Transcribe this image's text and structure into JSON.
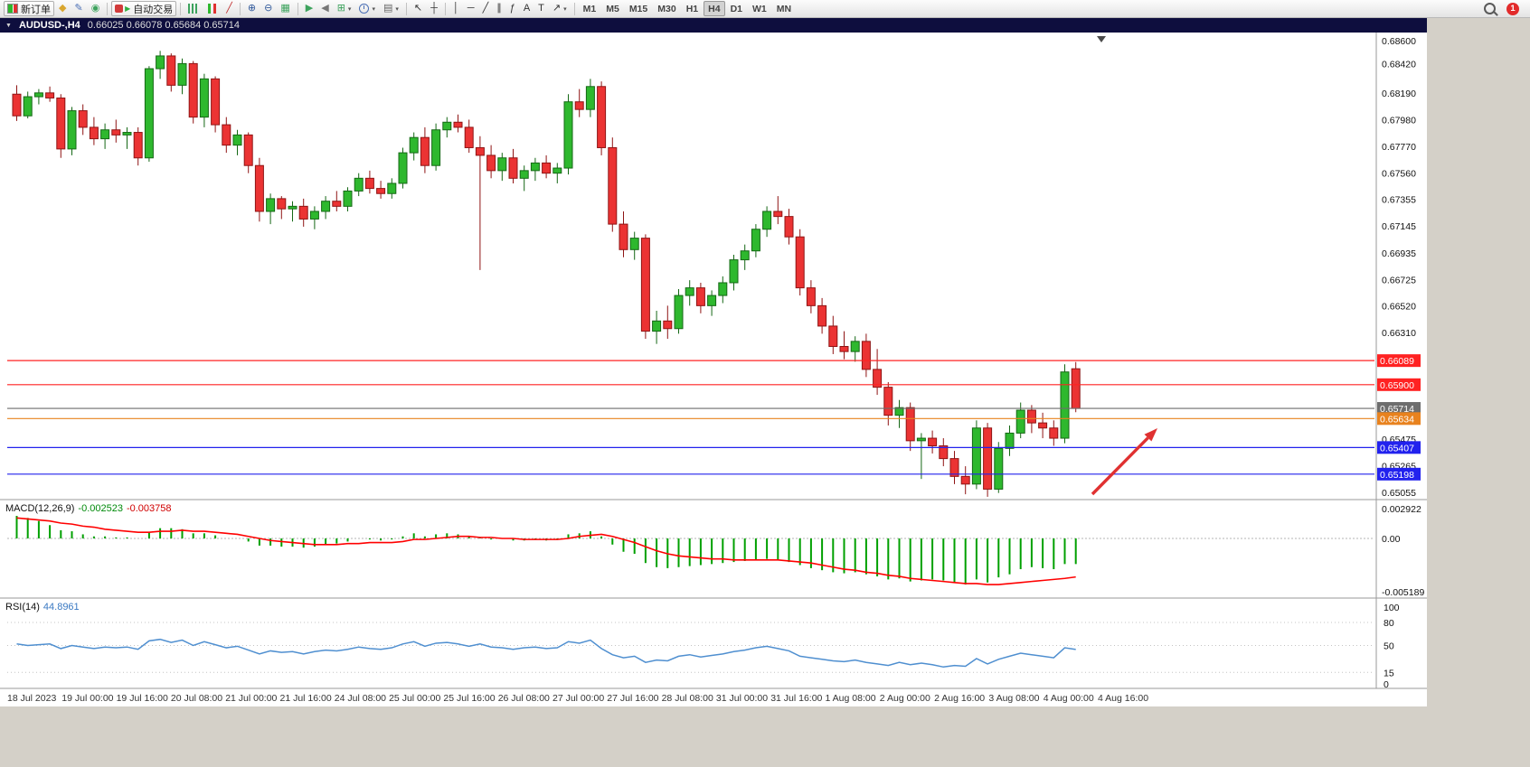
{
  "toolbar": {
    "items": [
      {
        "name": "new-order-button",
        "cls": "ico-neworder",
        "label": "新订单"
      },
      {
        "name": "market-watch-button",
        "glyph": "◆",
        "color": "#d9a62e"
      },
      {
        "name": "metaeditor-button",
        "glyph": "✎",
        "color": "#4a6fb5"
      },
      {
        "name": "refresh-button",
        "glyph": "◉",
        "color": "#3da35d"
      },
      {
        "sep": true
      },
      {
        "name": "auto-trading-button",
        "cls": "ico-autotrade",
        "label": "自动交易"
      },
      {
        "sep": true
      },
      {
        "name": "bar-chart-button",
        "cls": "ico-bars"
      },
      {
        "name": "candlestick-chart-button",
        "cls": "ico-candles"
      },
      {
        "name": "line-chart-button",
        "glyph": "╱",
        "color": "#c03030"
      },
      {
        "sep": true
      },
      {
        "name": "zoom-in-button",
        "glyph": "⊕",
        "color": "#31599b"
      },
      {
        "name": "zoom-out-button",
        "glyph": "⊖",
        "color": "#31599b"
      },
      {
        "name": "tile-windows-button",
        "glyph": "▦",
        "color": "#3da35d"
      },
      {
        "sep": true
      },
      {
        "name": "auto-scroll-button",
        "glyph": "▶",
        "color": "#3da35d"
      },
      {
        "name": "chart-shift-button",
        "glyph": "◀",
        "color": "#777777"
      },
      {
        "name": "new-chart-button",
        "glyph": "⊞",
        "color": "#3da35d",
        "dd": true
      },
      {
        "name": "period-button",
        "cls": "ico-clock",
        "dd": true
      },
      {
        "name": "template-button",
        "glyph": "▤",
        "color": "#666666",
        "dd": true
      },
      {
        "sep": true
      },
      {
        "name": "cursor-button",
        "glyph": "↖",
        "color": "#333333"
      },
      {
        "name": "crosshair-button",
        "glyph": "┼",
        "color": "#333333"
      },
      {
        "sep": true
      },
      {
        "name": "vertical-line-button",
        "glyph": "│",
        "color": "#333333"
      },
      {
        "name": "horizontal-line-button",
        "glyph": "─",
        "color": "#333333"
      },
      {
        "name": "trendline-button",
        "glyph": "╱",
        "color": "#333333"
      },
      {
        "name": "channel-button",
        "glyph": "∥",
        "color": "#333333"
      },
      {
        "name": "fibonacci-button",
        "glyph": "ƒ",
        "color": "#333333"
      },
      {
        "name": "text-button",
        "glyph": "A",
        "color": "#333333"
      },
      {
        "name": "text-label-button",
        "glyph": "T",
        "color": "#333333"
      },
      {
        "name": "arrows-button",
        "glyph": "↗",
        "color": "#333333",
        "dd": true
      },
      {
        "sep": true
      }
    ],
    "timeframes": [
      "M1",
      "M5",
      "M15",
      "M30",
      "H1",
      "H4",
      "D1",
      "W1",
      "MN"
    ],
    "active_timeframe": "H4",
    "notification_count": "1"
  },
  "chart": {
    "symbol_period": "AUDUSD-,H4",
    "ohlc": "0.66025 0.66078 0.65684 0.65714"
  },
  "chart_data": {
    "type": "candlestick",
    "symbol": "AUDUSD-",
    "period": "H4",
    "current_bar": {
      "open": 0.66025,
      "high": 0.66078,
      "low": 0.65684,
      "close": 0.65714
    },
    "colors": {
      "up": "#2eb82e",
      "up_border": "#156815",
      "down": "#eb3333",
      "down_border": "#8f1414",
      "macd_histogram": "#00a000",
      "macd_signal": "#ff0000",
      "rsi_line": "#4f8fd0",
      "resistance": "#ff2222",
      "support": "#2222ee",
      "pivot": "#e8821e",
      "current_price": "#6d6d6d",
      "arrow": "#e03131",
      "background": "#ffffff"
    },
    "price_axis": {
      "labels": [
        "0.68600",
        "0.68420",
        "0.68190",
        "0.67980",
        "0.67770",
        "0.67560",
        "0.67355",
        "0.67145",
        "0.66935",
        "0.66725",
        "0.66520",
        "0.66310",
        "0.65475",
        "0.65265",
        "0.65055"
      ],
      "range": [
        0.65055,
        0.686
      ]
    },
    "time_axis": {
      "labels": [
        "18 Jul 2023",
        "19 Jul 00:00",
        "19 Jul 16:00",
        "20 Jul 08:00",
        "21 Jul 00:00",
        "21 Jul 16:00",
        "24 Jul 08:00",
        "25 Jul 00:00",
        "25 Jul 16:00",
        "26 Jul 08:00",
        "27 Jul 00:00",
        "27 Jul 16:00",
        "28 Jul 08:00",
        "31 Jul 00:00",
        "31 Jul 16:00",
        "1 Aug 08:00",
        "2 Aug 00:00",
        "2 Aug 16:00",
        "3 Aug 08:00",
        "4 Aug 00:00",
        "4 Aug 16:00"
      ]
    },
    "hlines": [
      {
        "price": 0.66089,
        "label": "0.66089",
        "color": "#ff2222"
      },
      {
        "price": 0.659,
        "label": "0.65900",
        "color": "#ff2222"
      },
      {
        "price": 0.65714,
        "label": "0.65714",
        "color": "#6d6d6d",
        "current": true
      },
      {
        "price": 0.65634,
        "label": "0.65634",
        "color": "#e8821e"
      },
      {
        "price": 0.65407,
        "label": "0.65407",
        "color": "#2222ee"
      },
      {
        "price": 0.65198,
        "label": "0.65198",
        "color": "#2222ee"
      }
    ],
    "arrow": {
      "from": [
        1208,
        547
      ],
      "to": [
        1280,
        474
      ],
      "color": "#e03131"
    },
    "candles": [
      [
        0.6818,
        0.6825,
        0.6797,
        0.6801
      ],
      [
        0.6801,
        0.682,
        0.6799,
        0.6816
      ],
      [
        0.6816,
        0.6822,
        0.681,
        0.6819
      ],
      [
        0.6819,
        0.6824,
        0.6812,
        0.6815
      ],
      [
        0.6815,
        0.6818,
        0.6768,
        0.6775
      ],
      [
        0.6775,
        0.6808,
        0.677,
        0.6805
      ],
      [
        0.6805,
        0.681,
        0.6786,
        0.6792
      ],
      [
        0.6792,
        0.68,
        0.6778,
        0.6783
      ],
      [
        0.6783,
        0.6795,
        0.6775,
        0.679
      ],
      [
        0.679,
        0.6798,
        0.678,
        0.6786
      ],
      [
        0.6786,
        0.6792,
        0.6775,
        0.6788
      ],
      [
        0.6788,
        0.6792,
        0.6762,
        0.6768
      ],
      [
        0.6768,
        0.684,
        0.6765,
        0.6838
      ],
      [
        0.6838,
        0.6852,
        0.683,
        0.6848
      ],
      [
        0.6848,
        0.685,
        0.682,
        0.6825
      ],
      [
        0.6825,
        0.6846,
        0.6818,
        0.6842
      ],
      [
        0.6842,
        0.6844,
        0.6795,
        0.68
      ],
      [
        0.68,
        0.6834,
        0.6792,
        0.683
      ],
      [
        0.683,
        0.6832,
        0.6788,
        0.6794
      ],
      [
        0.6794,
        0.68,
        0.6772,
        0.6778
      ],
      [
        0.6778,
        0.679,
        0.677,
        0.6786
      ],
      [
        0.6786,
        0.6788,
        0.6756,
        0.6762
      ],
      [
        0.6762,
        0.6768,
        0.6718,
        0.6726
      ],
      [
        0.6726,
        0.674,
        0.6716,
        0.6736
      ],
      [
        0.6736,
        0.6738,
        0.672,
        0.6728
      ],
      [
        0.6728,
        0.6734,
        0.6718,
        0.673
      ],
      [
        0.673,
        0.6736,
        0.6714,
        0.672
      ],
      [
        0.672,
        0.673,
        0.6712,
        0.6726
      ],
      [
        0.6726,
        0.6738,
        0.672,
        0.6734
      ],
      [
        0.6734,
        0.6742,
        0.6726,
        0.673
      ],
      [
        0.673,
        0.6745,
        0.6726,
        0.6742
      ],
      [
        0.6742,
        0.6756,
        0.6738,
        0.6752
      ],
      [
        0.6752,
        0.6758,
        0.674,
        0.6744
      ],
      [
        0.6744,
        0.675,
        0.6736,
        0.674
      ],
      [
        0.674,
        0.6752,
        0.6736,
        0.6748
      ],
      [
        0.6748,
        0.6776,
        0.6744,
        0.6772
      ],
      [
        0.6772,
        0.6788,
        0.6766,
        0.6784
      ],
      [
        0.6784,
        0.6792,
        0.6756,
        0.6762
      ],
      [
        0.6762,
        0.6795,
        0.6758,
        0.679
      ],
      [
        0.679,
        0.68,
        0.6784,
        0.6796
      ],
      [
        0.6796,
        0.6802,
        0.6788,
        0.6792
      ],
      [
        0.6792,
        0.6798,
        0.6772,
        0.6776
      ],
      [
        0.6776,
        0.6785,
        0.668,
        0.677
      ],
      [
        0.677,
        0.6778,
        0.6752,
        0.6758
      ],
      [
        0.6758,
        0.6772,
        0.675,
        0.6768
      ],
      [
        0.6768,
        0.6775,
        0.6748,
        0.6752
      ],
      [
        0.6752,
        0.6762,
        0.6742,
        0.6758
      ],
      [
        0.6758,
        0.6768,
        0.675,
        0.6764
      ],
      [
        0.6764,
        0.677,
        0.6752,
        0.6756
      ],
      [
        0.6756,
        0.6764,
        0.6748,
        0.676
      ],
      [
        0.676,
        0.6818,
        0.6755,
        0.6812
      ],
      [
        0.6812,
        0.6822,
        0.68,
        0.6806
      ],
      [
        0.6806,
        0.683,
        0.68,
        0.6824
      ],
      [
        0.6824,
        0.6828,
        0.677,
        0.6776
      ],
      [
        0.6776,
        0.6784,
        0.671,
        0.6716
      ],
      [
        0.6716,
        0.6726,
        0.669,
        0.6696
      ],
      [
        0.6696,
        0.671,
        0.6688,
        0.6705
      ],
      [
        0.6705,
        0.6708,
        0.6626,
        0.6632
      ],
      [
        0.6632,
        0.6648,
        0.6622,
        0.664
      ],
      [
        0.664,
        0.6652,
        0.6626,
        0.6634
      ],
      [
        0.6634,
        0.6665,
        0.663,
        0.666
      ],
      [
        0.666,
        0.6672,
        0.6652,
        0.6666
      ],
      [
        0.6666,
        0.667,
        0.6646,
        0.6652
      ],
      [
        0.6652,
        0.6664,
        0.6644,
        0.666
      ],
      [
        0.666,
        0.6675,
        0.6654,
        0.667
      ],
      [
        0.667,
        0.6692,
        0.6664,
        0.6688
      ],
      [
        0.6688,
        0.67,
        0.668,
        0.6695
      ],
      [
        0.6695,
        0.6716,
        0.669,
        0.6712
      ],
      [
        0.6712,
        0.673,
        0.6706,
        0.6726
      ],
      [
        0.6726,
        0.6738,
        0.6716,
        0.6722
      ],
      [
        0.6722,
        0.6728,
        0.67,
        0.6706
      ],
      [
        0.6706,
        0.6712,
        0.666,
        0.6666
      ],
      [
        0.6666,
        0.6672,
        0.6646,
        0.6652
      ],
      [
        0.6652,
        0.6658,
        0.663,
        0.6636
      ],
      [
        0.6636,
        0.6644,
        0.6614,
        0.662
      ],
      [
        0.662,
        0.6632,
        0.661,
        0.6616
      ],
      [
        0.6616,
        0.6628,
        0.6608,
        0.6624
      ],
      [
        0.6624,
        0.663,
        0.6596,
        0.6602
      ],
      [
        0.6602,
        0.6618,
        0.6582,
        0.6588
      ],
      [
        0.6588,
        0.6592,
        0.6558,
        0.6566
      ],
      [
        0.6566,
        0.6578,
        0.6556,
        0.6572
      ],
      [
        0.6572,
        0.6576,
        0.6538,
        0.6546
      ],
      [
        0.6546,
        0.6552,
        0.6516,
        0.6548
      ],
      [
        0.6548,
        0.6554,
        0.6536,
        0.6542
      ],
      [
        0.6542,
        0.6548,
        0.6526,
        0.6532
      ],
      [
        0.6532,
        0.6538,
        0.6512,
        0.6518
      ],
      [
        0.6518,
        0.6526,
        0.6504,
        0.6512
      ],
      [
        0.6512,
        0.6562,
        0.6508,
        0.6556
      ],
      [
        0.6556,
        0.656,
        0.6502,
        0.6508
      ],
      [
        0.6508,
        0.6545,
        0.6505,
        0.654
      ],
      [
        0.654,
        0.6558,
        0.6534,
        0.6552
      ],
      [
        0.6552,
        0.6576,
        0.6548,
        0.657
      ],
      [
        0.657,
        0.6574,
        0.6552,
        0.656
      ],
      [
        0.656,
        0.6568,
        0.6548,
        0.6556
      ],
      [
        0.6556,
        0.6562,
        0.6542,
        0.6548
      ],
      [
        0.6548,
        0.6606,
        0.6544,
        0.66
      ],
      [
        0.66025,
        0.66078,
        0.65684,
        0.65714
      ]
    ],
    "indicators": [
      {
        "name": "MACD",
        "label": "MACD(12,26,9)",
        "main_value": "-0.002523",
        "signal_value": "-0.003758",
        "axis_labels": [
          "0.002922",
          "0.00",
          "-0.005189"
        ],
        "histogram": [
          0.0022,
          0.002,
          0.0017,
          0.0013,
          0.0008,
          0.0007,
          0.0004,
          0.0002,
          0.0002,
          0.0001,
          0.0001,
          0.0,
          0.0006,
          0.001,
          0.001,
          0.0009,
          0.0005,
          0.0005,
          0.0003,
          0.0,
          0.0,
          -0.0003,
          -0.0007,
          -0.0007,
          -0.0008,
          -0.0008,
          -0.0009,
          -0.0008,
          -0.0006,
          -0.0005,
          -0.0003,
          0.0,
          -0.0001,
          -0.0002,
          -0.0001,
          0.0002,
          0.0005,
          0.0002,
          0.0004,
          0.0005,
          0.0004,
          0.0002,
          0.0001,
          -0.0001,
          0.0,
          -0.0002,
          -0.0002,
          -0.0001,
          -0.0002,
          -0.0001,
          0.0004,
          0.0005,
          0.0007,
          0.0002,
          -0.0006,
          -0.0013,
          -0.0015,
          -0.0024,
          -0.0028,
          -0.0029,
          -0.0028,
          -0.0027,
          -0.0026,
          -0.0025,
          -0.0024,
          -0.0023,
          -0.0022,
          -0.0021,
          -0.002,
          -0.0021,
          -0.0023,
          -0.0026,
          -0.0029,
          -0.0031,
          -0.0033,
          -0.0034,
          -0.0033,
          -0.0035,
          -0.0037,
          -0.004,
          -0.0039,
          -0.0042,
          -0.0041,
          -0.004,
          -0.0041,
          -0.0043,
          -0.0045,
          -0.004,
          -0.0043,
          -0.0038,
          -0.0035,
          -0.003,
          -0.0028,
          -0.0029,
          -0.003,
          -0.0025,
          -0.0025
        ],
        "signal": [
          0.002,
          0.0019,
          0.0018,
          0.0017,
          0.0015,
          0.0014,
          0.0012,
          0.0011,
          0.0009,
          0.0008,
          0.0007,
          0.0006,
          0.0006,
          0.0007,
          0.0007,
          0.0008,
          0.0007,
          0.0007,
          0.0006,
          0.0005,
          0.0004,
          0.0002,
          0.0,
          -0.0002,
          -0.0003,
          -0.0004,
          -0.0005,
          -0.0006,
          -0.0006,
          -0.0006,
          -0.0005,
          -0.0005,
          -0.0004,
          -0.0004,
          -0.0004,
          -0.0003,
          -0.0001,
          -0.0001,
          0.0,
          0.0001,
          0.0002,
          0.0002,
          0.0001,
          0.0001,
          0.0,
          0.0,
          -0.0001,
          -0.0001,
          -0.0001,
          -0.0001,
          0.0,
          0.0002,
          0.0003,
          0.0004,
          0.0002,
          -0.0001,
          -0.0004,
          -0.0008,
          -0.0012,
          -0.0015,
          -0.0017,
          -0.0018,
          -0.0019,
          -0.002,
          -0.002,
          -0.0021,
          -0.0021,
          -0.0021,
          -0.0021,
          -0.0021,
          -0.0022,
          -0.0023,
          -0.0024,
          -0.0026,
          -0.0028,
          -0.003,
          -0.0031,
          -0.0033,
          -0.0034,
          -0.0036,
          -0.0037,
          -0.0039,
          -0.004,
          -0.0041,
          -0.0042,
          -0.0043,
          -0.0044,
          -0.0044,
          -0.0045,
          -0.0045,
          -0.0044,
          -0.0043,
          -0.0042,
          -0.0041,
          -0.004,
          -0.0039,
          -0.003758
        ]
      },
      {
        "name": "RSI",
        "label": "RSI(14)",
        "value": "44.8961",
        "axis_labels": [
          "100",
          "80",
          "50",
          "15",
          "0"
        ],
        "levels": [
          80,
          50,
          15
        ],
        "values": [
          52,
          50,
          51,
          52,
          46,
          50,
          48,
          46,
          48,
          47,
          48,
          45,
          56,
          58,
          54,
          57,
          50,
          55,
          51,
          47,
          49,
          44,
          39,
          43,
          41,
          42,
          39,
          42,
          44,
          43,
          45,
          48,
          46,
          45,
          47,
          52,
          55,
          49,
          53,
          54,
          52,
          49,
          52,
          48,
          47,
          45,
          47,
          48,
          46,
          47,
          55,
          53,
          57,
          46,
          38,
          34,
          36,
          28,
          31,
          30,
          36,
          38,
          35,
          37,
          39,
          42,
          44,
          47,
          49,
          46,
          43,
          36,
          34,
          32,
          30,
          29,
          31,
          28,
          26,
          24,
          28,
          25,
          27,
          25,
          22,
          24,
          23,
          33,
          26,
          32,
          36,
          40,
          38,
          36,
          34,
          47,
          44.9
        ]
      }
    ]
  }
}
